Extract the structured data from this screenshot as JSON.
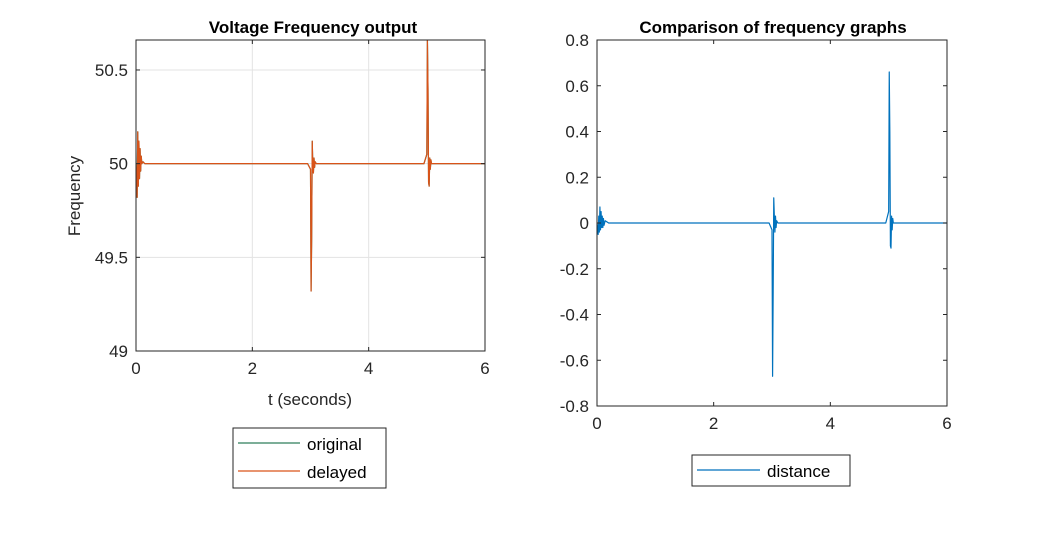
{
  "chart_data": [
    {
      "type": "line",
      "title": "Voltage Frequency output",
      "xlabel": "t (seconds)",
      "ylabel": "Frequency",
      "xlim": [
        0,
        6
      ],
      "ylim": [
        49,
        50.66
      ],
      "xticks": [
        0,
        2,
        4,
        6
      ],
      "yticks": [
        49,
        49.5,
        50,
        50.5
      ],
      "xtick_labels": [
        "0",
        "2",
        "4",
        "6"
      ],
      "ytick_labels": [
        "49",
        "49.5",
        "50",
        "50.5"
      ],
      "grid": true,
      "legend_position": "below-plot",
      "series": [
        {
          "name": "original",
          "color": "#2e7d5b",
          "x": [
            0,
            0.02,
            0.03,
            0.04,
            0.05,
            0.06,
            0.07,
            0.08,
            0.09,
            0.1,
            0.12,
            0.15,
            0.2,
            1,
            2,
            2.95,
            3.0,
            3.01,
            3.02,
            3.03,
            3.04,
            3.05,
            3.06,
            3.07,
            3.08,
            3.1,
            3.15,
            3.5,
            4,
            4.95,
            5.0,
            5.01,
            5.02,
            5.03,
            5.04,
            5.05,
            5.06,
            5.07,
            5.08,
            5.1,
            5.15,
            5.5,
            6
          ],
          "y": [
            50,
            49.82,
            50.17,
            49.88,
            50.12,
            49.92,
            50.08,
            49.96,
            50.04,
            50.0,
            50.01,
            50.0,
            50,
            50,
            50,
            50,
            49.97,
            49.32,
            49.6,
            50.12,
            49.98,
            49.95,
            50.03,
            49.98,
            50.01,
            50,
            50,
            50,
            50,
            50,
            50.05,
            50.66,
            50.4,
            49.9,
            49.88,
            50.03,
            49.97,
            50.02,
            50.0,
            50,
            50,
            50,
            50
          ]
        },
        {
          "name": "delayed",
          "color": "#d95319",
          "x": [
            0,
            0.02,
            0.03,
            0.04,
            0.05,
            0.06,
            0.07,
            0.08,
            0.09,
            0.1,
            0.12,
            0.15,
            0.2,
            1,
            2,
            2.95,
            3.0,
            3.01,
            3.02,
            3.03,
            3.04,
            3.05,
            3.06,
            3.07,
            3.08,
            3.1,
            3.15,
            3.5,
            4,
            4.95,
            5.0,
            5.01,
            5.02,
            5.03,
            5.04,
            5.05,
            5.06,
            5.07,
            5.08,
            5.1,
            5.15,
            5.5,
            6
          ],
          "y": [
            50,
            49.82,
            50.17,
            49.88,
            50.12,
            49.92,
            50.08,
            49.96,
            50.04,
            50.0,
            50.01,
            50.0,
            50,
            50,
            50,
            50,
            49.97,
            49.32,
            49.6,
            50.12,
            49.98,
            49.95,
            50.03,
            49.98,
            50.01,
            50,
            50,
            50,
            50,
            50,
            50.05,
            50.66,
            50.4,
            49.9,
            49.88,
            50.03,
            49.97,
            50.02,
            50.0,
            50,
            50,
            50,
            50
          ]
        }
      ]
    },
    {
      "type": "line",
      "title": "Comparison of frequency graphs",
      "xlabel": "",
      "ylabel": "",
      "xlim": [
        0,
        6
      ],
      "ylim": [
        -0.8,
        0.8
      ],
      "xticks": [
        0,
        2,
        4,
        6
      ],
      "yticks": [
        -0.8,
        -0.6,
        -0.4,
        -0.2,
        0,
        0.2,
        0.4,
        0.6,
        0.8
      ],
      "xtick_labels": [
        "0",
        "2",
        "4",
        "6"
      ],
      "ytick_labels": [
        "-0.8",
        "-0.6",
        "-0.4",
        "-0.2",
        "0",
        "0.2",
        "0.4",
        "0.6",
        "0.8"
      ],
      "grid": false,
      "legend_position": "below-plot",
      "series": [
        {
          "name": "distance",
          "color": "#0072bd",
          "x": [
            0,
            0.02,
            0.03,
            0.04,
            0.05,
            0.06,
            0.07,
            0.08,
            0.09,
            0.1,
            0.11,
            0.12,
            0.14,
            0.2,
            1,
            2,
            2.95,
            3.0,
            3.01,
            3.02,
            3.03,
            3.04,
            3.05,
            3.06,
            3.07,
            3.08,
            3.1,
            3.15,
            3.5,
            4,
            4.95,
            5.0,
            5.01,
            5.02,
            5.03,
            5.04,
            5.05,
            5.06,
            5.07,
            5.08,
            5.1,
            5.15,
            5.5,
            6
          ],
          "y": [
            0,
            -0.05,
            0.03,
            -0.04,
            0.07,
            -0.03,
            0.05,
            -0.02,
            0.03,
            -0.02,
            0.02,
            -0.01,
            0.01,
            0,
            0,
            0,
            0,
            -0.03,
            -0.67,
            -0.3,
            0.11,
            0.03,
            -0.04,
            0.03,
            -0.02,
            0.01,
            0,
            0,
            0,
            0,
            0,
            0.05,
            0.66,
            0.4,
            -0.1,
            -0.11,
            0.03,
            -0.03,
            0.02,
            0,
            0,
            0,
            0,
            0
          ]
        }
      ]
    }
  ]
}
